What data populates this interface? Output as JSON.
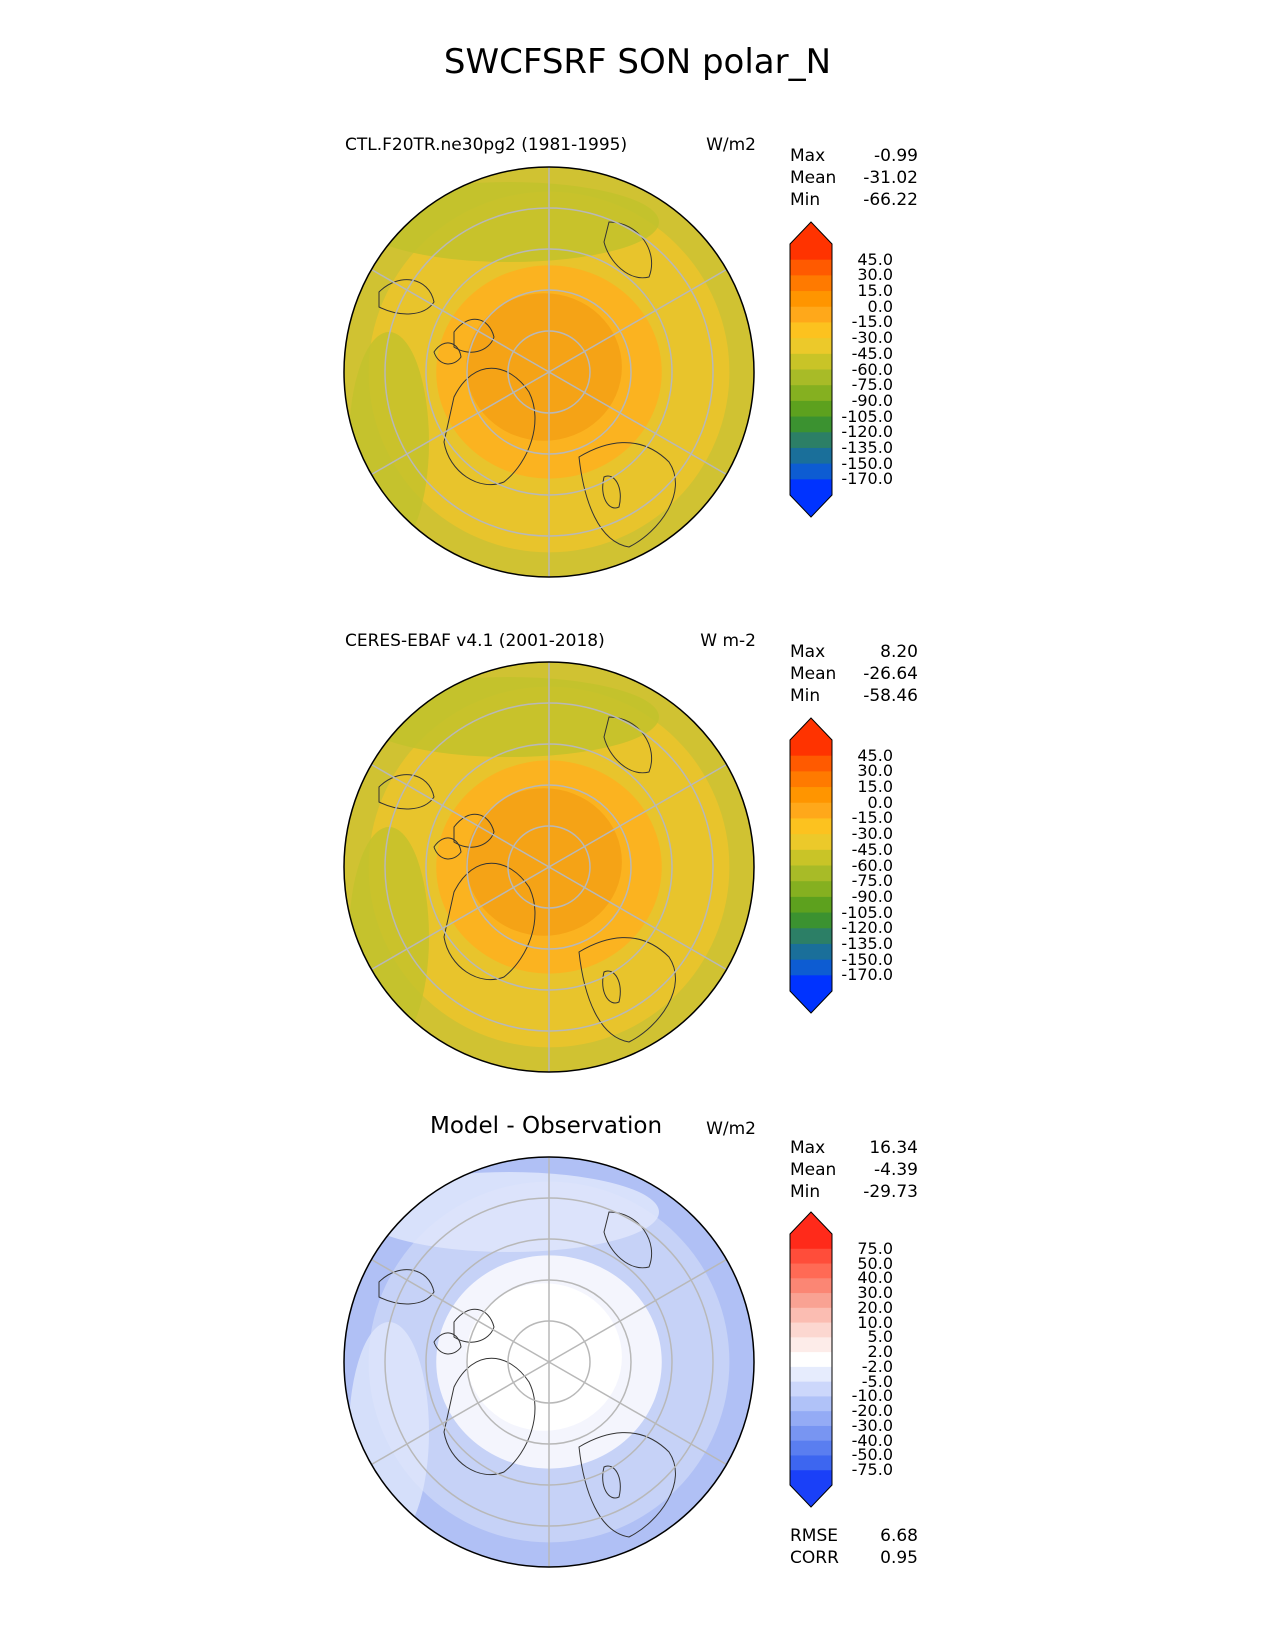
{
  "figure": {
    "title": "SWCFSRF SON polar_N"
  },
  "panels": [
    {
      "id": "test",
      "title_left": "CTL.F20TR.ne30pg2 (1981-1995)",
      "title_center": "",
      "units": "W/m2",
      "stats": [
        {
          "label": "Max",
          "value": "-0.99"
        },
        {
          "label": "Mean",
          "value": "-31.02"
        },
        {
          "label": "Min",
          "value": "-66.22"
        }
      ],
      "extra_stats": [],
      "colorbar": {
        "labels": [
          "45.0",
          "30.0",
          "15.0",
          "0.0",
          "-15.0",
          "-30.0",
          "-45.0",
          "-60.0",
          "-75.0",
          "-90.0",
          "-105.0",
          "-120.0",
          "-135.0",
          "-150.0",
          "-170.0"
        ],
        "colors": [
          "#ff3300",
          "#ff5a00",
          "#ff7a00",
          "#ff9500",
          "#ffa81a",
          "#fcc21f",
          "#ecc92a",
          "#c9c427",
          "#a8bb27",
          "#85b020",
          "#5da11e",
          "#3b9230",
          "#2c7f66",
          "#1a6f9a",
          "#0d5cd2",
          "#0033ff"
        ],
        "upper_extend": "#ff3300",
        "lower_extend": "#0033ff"
      },
      "map": {
        "ocean": "#e8c42c",
        "pole_region": "#f5a316",
        "inner_region": "#fbb320",
        "outer_region": "#d0c232",
        "mid_latitude_band": "#c2c22c"
      }
    },
    {
      "id": "reference",
      "title_left": "CERES-EBAF v4.1 (2001-2018)",
      "title_center": "",
      "units": "W m-2",
      "stats": [
        {
          "label": "Max",
          "value": "8.20"
        },
        {
          "label": "Mean",
          "value": "-26.64"
        },
        {
          "label": "Min",
          "value": "-58.46"
        }
      ],
      "extra_stats": [],
      "colorbar": {
        "labels": [
          "45.0",
          "30.0",
          "15.0",
          "0.0",
          "-15.0",
          "-30.0",
          "-45.0",
          "-60.0",
          "-75.0",
          "-90.0",
          "-105.0",
          "-120.0",
          "-135.0",
          "-150.0",
          "-170.0"
        ],
        "colors": [
          "#ff3300",
          "#ff5a00",
          "#ff7a00",
          "#ff9500",
          "#ffa81a",
          "#fcc21f",
          "#ecc92a",
          "#c9c427",
          "#a8bb27",
          "#85b020",
          "#5da11e",
          "#3b9230",
          "#2c7f66",
          "#1a6f9a",
          "#0d5cd2",
          "#0033ff"
        ],
        "upper_extend": "#ff3300",
        "lower_extend": "#0033ff"
      },
      "map": {
        "ocean": "#e8c42c",
        "pole_region": "#f5a316",
        "inner_region": "#fbb320",
        "outer_region": "#d0c232",
        "mid_latitude_band": "#c2c22c"
      }
    },
    {
      "id": "difference",
      "title_left": "",
      "title_center": "Model - Observation",
      "units": "W/m2",
      "stats": [
        {
          "label": "Max",
          "value": "16.34"
        },
        {
          "label": "Mean",
          "value": "-4.39"
        },
        {
          "label": "Min",
          "value": "-29.73"
        }
      ],
      "extra_stats": [
        {
          "label": "RMSE",
          "value": "6.68"
        },
        {
          "label": "CORR",
          "value": "0.95"
        }
      ],
      "colorbar": {
        "labels": [
          "75.0",
          "50.0",
          "40.0",
          "30.0",
          "20.0",
          "10.0",
          "5.0",
          "2.0",
          "-2.0",
          "-5.0",
          "-10.0",
          "-20.0",
          "-30.0",
          "-40.0",
          "-50.0",
          "-75.0"
        ],
        "colors": [
          "#ff2a1a",
          "#ff4d3a",
          "#ff6a55",
          "#fb8674",
          "#f9a293",
          "#fbbdb2",
          "#fcd7d0",
          "#fdece9",
          "#ffffff",
          "#e6ecfd",
          "#ccd7fb",
          "#b0c2f8",
          "#94abf5",
          "#7895f2",
          "#5a7ef0",
          "#3d66f0",
          "#1a40f8"
        ],
        "upper_extend": "#ff2a1a",
        "lower_extend": "#1a40f8"
      },
      "map": {
        "ocean": "#c6d2f7",
        "pole_region": "#ffffff",
        "inner_region": "#f4f5fd",
        "outer_region": "#b0c0f5",
        "mid_latitude_band": "#dfe6fb"
      }
    }
  ]
}
